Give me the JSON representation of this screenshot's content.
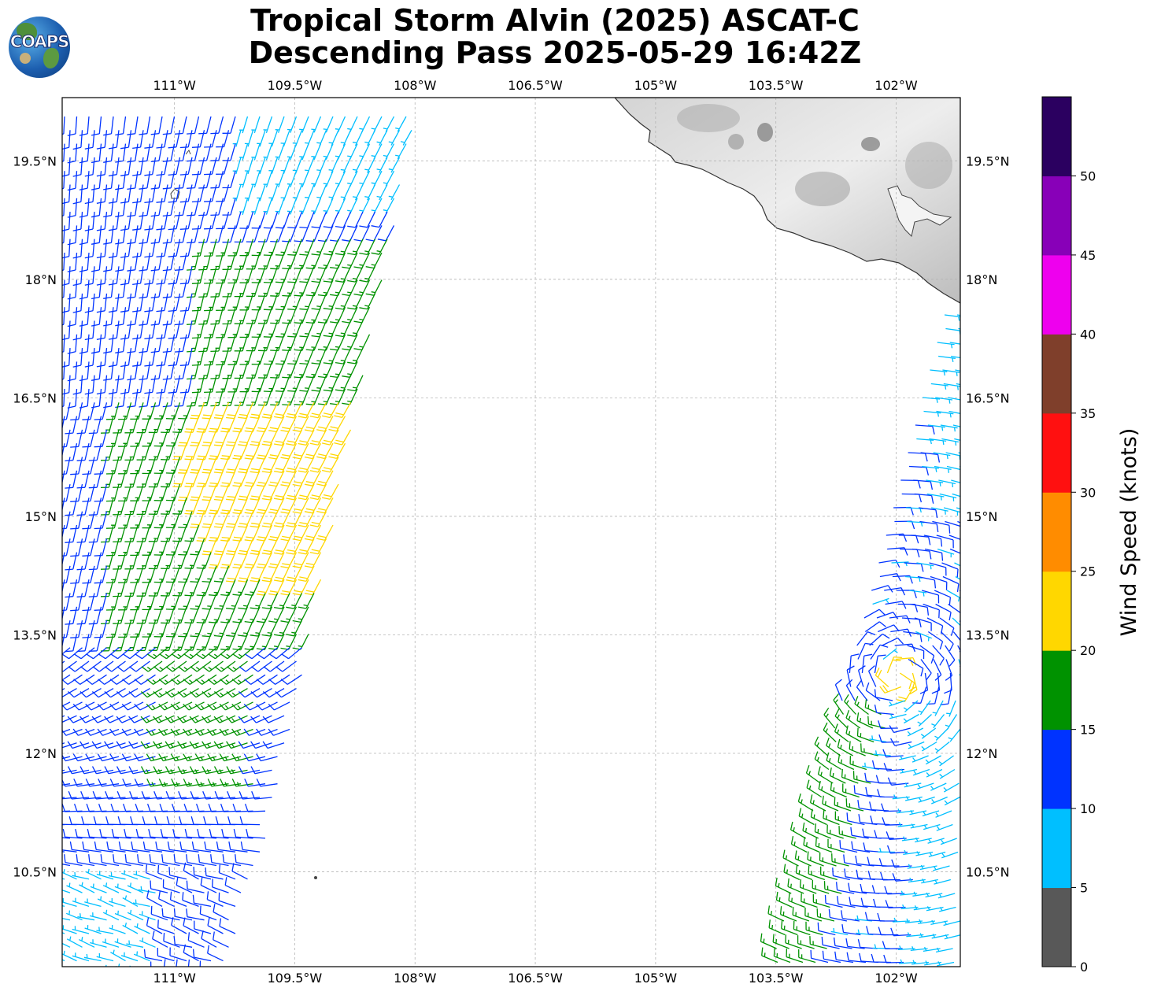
{
  "logo": {
    "text": "COAPS",
    "name": "COAPS logo"
  },
  "title": {
    "line1": "Tropical Storm Alvin (2025) ASCAT-C",
    "line2": "Descending Pass 2025-05-29 16:42Z"
  },
  "map": {
    "lon_ticks": [
      "111°W",
      "109.5°W",
      "108°W",
      "106.5°W",
      "105°W",
      "103.5°W",
      "102°W"
    ],
    "lat_ticks": [
      "19.5°N",
      "18°N",
      "16.5°N",
      "15°N",
      "13.5°N",
      "12°N",
      "10.5°N"
    ],
    "lon_range": [
      -112.4,
      -101.2
    ],
    "lat_range": [
      9.3,
      20.3
    ]
  },
  "colorbar": {
    "label": "Wind Speed (knots)",
    "ticks": [
      "0",
      "5",
      "10",
      "15",
      "20",
      "25",
      "30",
      "35",
      "40",
      "45",
      "50"
    ],
    "colors": [
      "#585858",
      "#00bfff",
      "#0033ff",
      "#009200",
      "#ffd700",
      "#ff8c00",
      "#ff1010",
      "#7f3f2b",
      "#ee00ee",
      "#8800b8",
      "#2b0060"
    ]
  },
  "chart_data": {
    "type": "wind barb swath map",
    "title": "Tropical Storm Alvin (2025) ASCAT-C Descending Pass 2025-05-29 16:42Z",
    "xlabel": "",
    "ylabel": "",
    "xlim": [
      -112.4,
      -101.2
    ],
    "ylim": [
      9.3,
      20.3
    ],
    "colorbar_label": "Wind Speed (knots)",
    "colorbar_range": [
      0,
      55
    ],
    "swaths": [
      {
        "name": "west swath",
        "lon_west_edge": -112.4,
        "lon_east_edge_south": -109.6,
        "lon_east_edge_north": -108.0,
        "lat_range": [
          9.3,
          20.3
        ],
        "dominant_speed_kt": "10-20",
        "max_speed_kt": "20-25"
      },
      {
        "name": "east swath",
        "lon_east_edge": -101.2,
        "lon_west_edge_south": -103.9,
        "lon_west_edge_north": -101.3,
        "lat_range": [
          9.3,
          17.0
        ],
        "dominant_speed_kt": "5-15",
        "max_speed_kt": "20-25"
      }
    ]
  }
}
